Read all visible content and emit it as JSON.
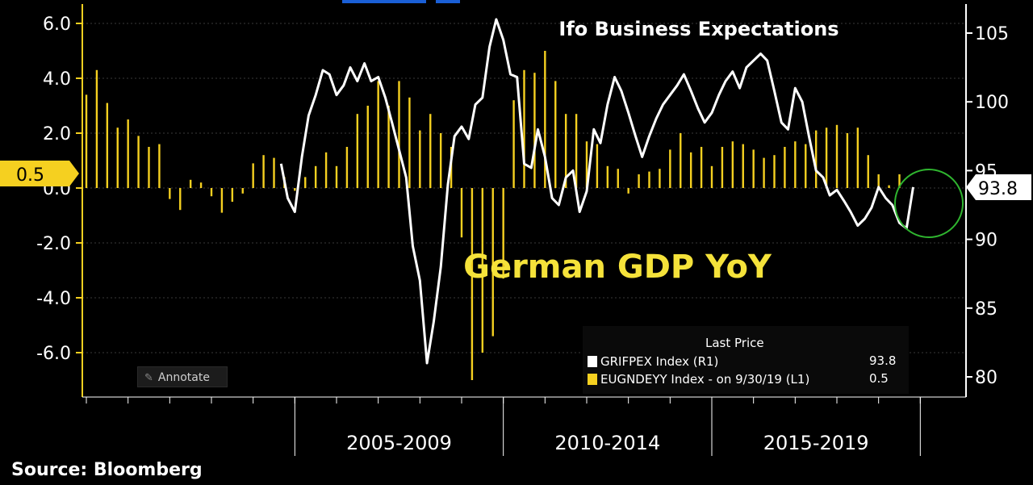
{
  "header": {
    "title": "Ifo Business Expectations",
    "overlay_label": "German GDP YoY"
  },
  "source": "Source: Bloomberg",
  "annotate_label": "Annotate",
  "legend": {
    "header": "Last Price",
    "items": [
      {
        "label": "GRIFPEX Index  (R1)",
        "value": "93.8",
        "color": "#ffffff"
      },
      {
        "label": "EUGNDEYY Index -  on 9/30/19  (L1)",
        "value": "0.5",
        "color": "#f5d020"
      }
    ]
  },
  "callouts": {
    "left": "0.5",
    "right": "93.8"
  },
  "colors": {
    "background": "#000000",
    "line": "#ffffff",
    "bars": "#f5d020",
    "circle": "#2fb52f"
  },
  "chart_data": {
    "type": "bar+line",
    "x_tick_labels": [
      "2005-2009",
      "2010-2014",
      "2015-2019"
    ],
    "left_axis": {
      "ticks": [
        6.0,
        4.0,
        2.0,
        0.0,
        -2.0,
        -4.0,
        -6.0
      ],
      "tick_labels": [
        "6.0",
        "4.0",
        "2.0",
        "0.0",
        "-2.0",
        "-4.0",
        "-6.0"
      ],
      "ylim": [
        -7.5,
        6.5
      ]
    },
    "right_axis": {
      "ticks": [
        105,
        100,
        95,
        90,
        85,
        80
      ],
      "tick_labels": [
        "105",
        "100",
        "95",
        "90",
        "85",
        "80"
      ],
      "ylim": [
        79,
        106
      ]
    },
    "series": [
      {
        "name": "EUGNDEYY Index",
        "axis": "left",
        "type": "bar",
        "color": "#f5d020",
        "x": [
          2000.0,
          2000.25,
          2000.5,
          2000.75,
          2001.0,
          2001.25,
          2001.5,
          2001.75,
          2002.0,
          2002.25,
          2002.5,
          2002.75,
          2003.0,
          2003.25,
          2003.5,
          2003.75,
          2004.0,
          2004.25,
          2004.5,
          2004.75,
          2005.0,
          2005.25,
          2005.5,
          2005.75,
          2006.0,
          2006.25,
          2006.5,
          2006.75,
          2007.0,
          2007.25,
          2007.5,
          2007.75,
          2008.0,
          2008.25,
          2008.5,
          2008.75,
          2009.0,
          2009.25,
          2009.5,
          2009.75,
          2010.0,
          2010.25,
          2010.5,
          2010.75,
          2011.0,
          2011.25,
          2011.5,
          2011.75,
          2012.0,
          2012.25,
          2012.5,
          2012.75,
          2013.0,
          2013.25,
          2013.5,
          2013.75,
          2014.0,
          2014.25,
          2014.5,
          2014.75,
          2015.0,
          2015.25,
          2015.5,
          2015.75,
          2016.0,
          2016.25,
          2016.5,
          2016.75,
          2017.0,
          2017.25,
          2017.5,
          2017.75,
          2018.0,
          2018.25,
          2018.5,
          2018.75,
          2019.0,
          2019.25,
          2019.5
        ],
        "values": [
          3.4,
          4.3,
          3.1,
          2.2,
          2.5,
          1.9,
          1.5,
          1.6,
          -0.4,
          -0.8,
          0.3,
          0.2,
          -0.3,
          -0.9,
          -0.5,
          -0.2,
          0.9,
          1.2,
          1.1,
          0.4,
          -0.1,
          0.4,
          0.8,
          1.3,
          0.8,
          1.5,
          2.7,
          3.0,
          3.9,
          3.0,
          3.9,
          3.3,
          2.1,
          2.7,
          2.0,
          1.5,
          -1.8,
          -7.0,
          -6.0,
          -5.4,
          -3.3,
          3.2,
          4.3,
          4.2,
          5.0,
          3.9,
          2.7,
          2.7,
          1.7,
          1.6,
          0.8,
          0.7,
          -0.2,
          0.5,
          0.6,
          0.7,
          1.4,
          2.0,
          1.3,
          1.5,
          0.8,
          1.5,
          1.7,
          1.6,
          1.4,
          1.1,
          1.2,
          1.5,
          1.7,
          1.6,
          2.1,
          2.2,
          2.3,
          2.0,
          2.2,
          1.2,
          0.5,
          0.1,
          0.5
        ]
      },
      {
        "name": "GRIFPEX Index",
        "axis": "right",
        "type": "line",
        "color": "#ffffff",
        "x": [
          2004.67,
          2004.83,
          2005.0,
          2005.17,
          2005.33,
          2005.5,
          2005.67,
          2005.83,
          2006.0,
          2006.17,
          2006.33,
          2006.5,
          2006.67,
          2006.83,
          2007.0,
          2007.17,
          2007.33,
          2007.5,
          2007.67,
          2007.83,
          2008.0,
          2008.17,
          2008.33,
          2008.5,
          2008.67,
          2008.83,
          2009.0,
          2009.17,
          2009.33,
          2009.5,
          2009.67,
          2009.83,
          2010.0,
          2010.17,
          2010.33,
          2010.5,
          2010.67,
          2010.83,
          2011.0,
          2011.17,
          2011.33,
          2011.5,
          2011.67,
          2011.83,
          2012.0,
          2012.17,
          2012.33,
          2012.5,
          2012.67,
          2012.83,
          2013.0,
          2013.17,
          2013.33,
          2013.5,
          2013.67,
          2013.83,
          2014.0,
          2014.17,
          2014.33,
          2014.5,
          2014.67,
          2014.83,
          2015.0,
          2015.17,
          2015.33,
          2015.5,
          2015.67,
          2015.83,
          2016.0,
          2016.17,
          2016.33,
          2016.5,
          2016.67,
          2016.83,
          2017.0,
          2017.17,
          2017.33,
          2017.5,
          2017.67,
          2017.83,
          2018.0,
          2018.17,
          2018.33,
          2018.5,
          2018.67,
          2018.83,
          2019.0,
          2019.17,
          2019.33,
          2019.5,
          2019.67,
          2019.83
        ],
        "values": [
          95.5,
          93.0,
          92.0,
          96.0,
          99.0,
          100.5,
          102.3,
          102.0,
          100.5,
          101.2,
          102.5,
          101.5,
          102.8,
          101.5,
          101.8,
          100.3,
          98.5,
          96.5,
          94.5,
          89.5,
          87.0,
          81.0,
          84.0,
          88.0,
          94.0,
          97.5,
          98.2,
          97.3,
          99.8,
          100.3,
          104.0,
          106.0,
          104.5,
          102.0,
          101.8,
          95.5,
          95.2,
          98.0,
          96.0,
          93.0,
          92.5,
          94.5,
          95.0,
          92.0,
          93.5,
          98.0,
          97.0,
          99.8,
          101.8,
          100.8,
          99.2,
          97.5,
          96.0,
          97.5,
          98.8,
          99.8,
          100.5,
          101.2,
          102.0,
          100.8,
          99.5,
          98.5,
          99.2,
          100.5,
          101.5,
          102.2,
          101.0,
          102.5,
          103.0,
          103.5,
          103.0,
          100.8,
          98.5,
          98.0,
          101.0,
          100.0,
          97.5,
          95.0,
          94.5,
          93.2,
          93.6,
          92.8,
          92.0,
          91.0,
          91.5,
          92.3,
          93.8,
          93.0,
          92.5,
          91.2,
          90.8,
          93.8
        ]
      }
    ]
  }
}
